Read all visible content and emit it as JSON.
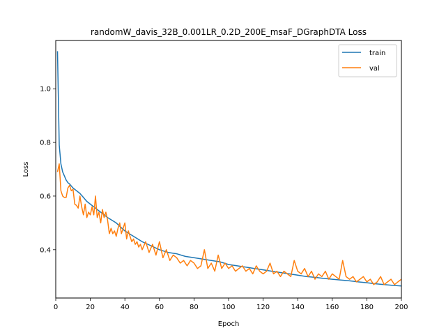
{
  "chart_data": {
    "type": "line",
    "title": "randomW_davis_32B_0.001LR_0.2D_200E_msaF_DGraphDTA Loss",
    "xlabel": "Epoch",
    "ylabel": "Loss",
    "xlim": [
      0,
      200
    ],
    "ylim": [
      0.22,
      1.18
    ],
    "xticks": [
      0,
      20,
      40,
      60,
      80,
      100,
      120,
      140,
      160,
      180,
      200
    ],
    "yticks": [
      0.4,
      0.6,
      0.8,
      1.0
    ],
    "ytick_labels": [
      "0.4",
      "0.6",
      "0.8",
      "1.0"
    ],
    "grid": false,
    "legend_position": "top-right",
    "series": [
      {
        "name": "train",
        "color": "#1f77b4",
        "x": [
          1,
          2,
          3,
          4,
          5,
          6,
          7,
          8,
          10,
          12,
          14,
          16,
          18,
          20,
          22,
          25,
          28,
          30,
          35,
          40,
          45,
          50,
          55,
          60,
          65,
          70,
          75,
          80,
          85,
          90,
          95,
          100,
          105,
          110,
          115,
          120,
          125,
          130,
          135,
          140,
          145,
          150,
          155,
          160,
          165,
          170,
          175,
          180,
          185,
          190,
          195,
          200
        ],
        "y": [
          1.14,
          0.79,
          0.72,
          0.69,
          0.675,
          0.66,
          0.65,
          0.645,
          0.63,
          0.62,
          0.61,
          0.595,
          0.58,
          0.57,
          0.56,
          0.545,
          0.53,
          0.52,
          0.5,
          0.47,
          0.45,
          0.43,
          0.415,
          0.4,
          0.39,
          0.385,
          0.375,
          0.37,
          0.365,
          0.36,
          0.355,
          0.345,
          0.34,
          0.335,
          0.33,
          0.325,
          0.32,
          0.315,
          0.31,
          0.305,
          0.3,
          0.297,
          0.293,
          0.29,
          0.287,
          0.284,
          0.28,
          0.277,
          0.273,
          0.27,
          0.267,
          0.265
        ]
      },
      {
        "name": "val",
        "color": "#ff7f0e",
        "x": [
          1,
          2,
          3,
          4,
          5,
          6,
          7,
          8,
          9,
          10,
          11,
          12,
          13,
          14,
          15,
          16,
          17,
          18,
          19,
          20,
          21,
          22,
          23,
          24,
          25,
          26,
          27,
          28,
          29,
          30,
          31,
          32,
          33,
          34,
          35,
          36,
          37,
          38,
          39,
          40,
          41,
          42,
          43,
          44,
          45,
          46,
          47,
          48,
          49,
          50,
          52,
          54,
          56,
          58,
          60,
          62,
          64,
          66,
          68,
          70,
          72,
          74,
          76,
          78,
          80,
          82,
          84,
          86,
          88,
          90,
          92,
          94,
          96,
          98,
          100,
          102,
          104,
          106,
          108,
          110,
          112,
          114,
          116,
          118,
          120,
          122,
          124,
          126,
          128,
          130,
          132,
          134,
          136,
          138,
          140,
          142,
          144,
          146,
          148,
          150,
          152,
          154,
          156,
          158,
          160,
          162,
          164,
          166,
          168,
          170,
          172,
          174,
          176,
          178,
          180,
          182,
          184,
          186,
          188,
          190,
          192,
          194,
          196,
          198,
          200
        ],
        "y": [
          0.69,
          0.72,
          0.62,
          0.6,
          0.595,
          0.595,
          0.63,
          0.64,
          0.62,
          0.625,
          0.57,
          0.565,
          0.555,
          0.6,
          0.56,
          0.53,
          0.57,
          0.52,
          0.54,
          0.53,
          0.56,
          0.53,
          0.6,
          0.52,
          0.54,
          0.5,
          0.55,
          0.52,
          0.54,
          0.51,
          0.46,
          0.48,
          0.46,
          0.47,
          0.45,
          0.48,
          0.5,
          0.46,
          0.48,
          0.5,
          0.44,
          0.47,
          0.45,
          0.43,
          0.44,
          0.42,
          0.43,
          0.41,
          0.42,
          0.4,
          0.43,
          0.39,
          0.42,
          0.38,
          0.43,
          0.37,
          0.4,
          0.36,
          0.38,
          0.37,
          0.35,
          0.36,
          0.34,
          0.36,
          0.35,
          0.33,
          0.34,
          0.4,
          0.33,
          0.35,
          0.32,
          0.38,
          0.33,
          0.35,
          0.33,
          0.34,
          0.32,
          0.33,
          0.34,
          0.32,
          0.33,
          0.31,
          0.34,
          0.32,
          0.31,
          0.32,
          0.35,
          0.31,
          0.32,
          0.3,
          0.32,
          0.31,
          0.3,
          0.36,
          0.32,
          0.31,
          0.33,
          0.3,
          0.32,
          0.29,
          0.31,
          0.3,
          0.32,
          0.29,
          0.31,
          0.3,
          0.29,
          0.36,
          0.3,
          0.29,
          0.3,
          0.28,
          0.29,
          0.3,
          0.28,
          0.29,
          0.27,
          0.28,
          0.3,
          0.27,
          0.28,
          0.29,
          0.27,
          0.28,
          0.29
        ]
      }
    ]
  }
}
